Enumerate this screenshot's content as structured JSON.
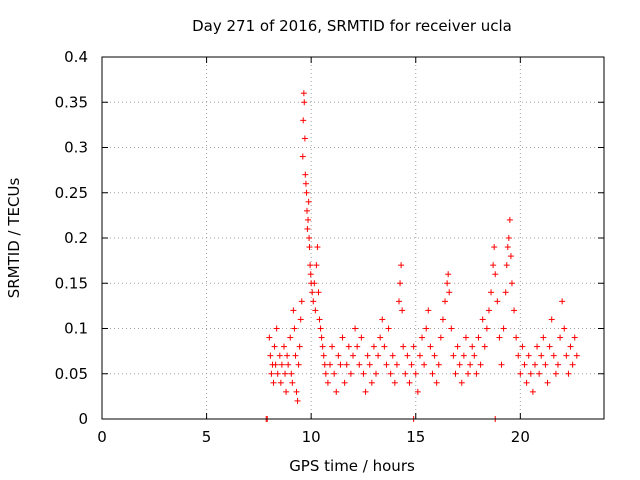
{
  "chart_data": {
    "type": "scatter",
    "title": "Day 271 of 2016, SRMTID for receiver ucla",
    "xlabel": "GPS time / hours",
    "ylabel": "SRMTID / TECUs",
    "xlim": [
      0,
      24
    ],
    "ylim": [
      0,
      0.4
    ],
    "x_ticks": [
      0,
      5,
      10,
      15,
      20
    ],
    "y_ticks": [
      0,
      0.05,
      0.1,
      0.15,
      0.2,
      0.25,
      0.3,
      0.35,
      0.4
    ],
    "x_tick_labels": [
      "0",
      "5",
      "10",
      "15",
      "20"
    ],
    "y_tick_labels": [
      "0",
      "0.05",
      "0.1",
      "0.15",
      "0.2",
      "0.25",
      "0.3",
      "0.35",
      "0.4"
    ],
    "grid": true,
    "marker": "plus",
    "color": "#ff0000",
    "series": [
      {
        "name": "SRMTID",
        "points": [
          [
            7.85,
            0.0
          ],
          [
            7.9,
            0.0
          ],
          [
            14.9,
            0.0
          ],
          [
            18.8,
            0.0
          ],
          [
            8.0,
            0.09
          ],
          [
            8.05,
            0.07
          ],
          [
            8.1,
            0.05
          ],
          [
            8.15,
            0.06
          ],
          [
            8.2,
            0.04
          ],
          [
            8.25,
            0.08
          ],
          [
            8.3,
            0.06
          ],
          [
            8.35,
            0.1
          ],
          [
            8.4,
            0.05
          ],
          [
            8.5,
            0.07
          ],
          [
            8.55,
            0.04
          ],
          [
            8.6,
            0.06
          ],
          [
            8.7,
            0.08
          ],
          [
            8.75,
            0.05
          ],
          [
            8.8,
            0.03
          ],
          [
            8.85,
            0.07
          ],
          [
            8.9,
            0.06
          ],
          [
            9.0,
            0.09
          ],
          [
            9.05,
            0.05
          ],
          [
            9.1,
            0.04
          ],
          [
            9.15,
            0.12
          ],
          [
            9.2,
            0.1
          ],
          [
            9.25,
            0.07
          ],
          [
            9.3,
            0.03
          ],
          [
            9.35,
            0.02
          ],
          [
            9.4,
            0.06
          ],
          [
            9.45,
            0.08
          ],
          [
            9.5,
            0.11
          ],
          [
            9.55,
            0.13
          ],
          [
            9.6,
            0.29
          ],
          [
            9.62,
            0.33
          ],
          [
            9.65,
            0.36
          ],
          [
            9.67,
            0.35
          ],
          [
            9.7,
            0.31
          ],
          [
            9.72,
            0.27
          ],
          [
            9.75,
            0.26
          ],
          [
            9.78,
            0.25
          ],
          [
            9.8,
            0.23
          ],
          [
            9.82,
            0.21
          ],
          [
            9.85,
            0.22
          ],
          [
            9.88,
            0.24
          ],
          [
            9.9,
            0.2
          ],
          [
            9.92,
            0.19
          ],
          [
            9.95,
            0.17
          ],
          [
            9.98,
            0.16
          ],
          [
            10.0,
            0.15
          ],
          [
            10.05,
            0.14
          ],
          [
            10.1,
            0.13
          ],
          [
            10.15,
            0.15
          ],
          [
            10.2,
            0.12
          ],
          [
            10.25,
            0.17
          ],
          [
            10.3,
            0.19
          ],
          [
            10.35,
            0.14
          ],
          [
            10.4,
            0.11
          ],
          [
            10.45,
            0.1
          ],
          [
            10.5,
            0.09
          ],
          [
            10.55,
            0.08
          ],
          [
            10.6,
            0.07
          ],
          [
            10.65,
            0.06
          ],
          [
            10.7,
            0.05
          ],
          [
            10.8,
            0.04
          ],
          [
            10.9,
            0.06
          ],
          [
            11.0,
            0.08
          ],
          [
            11.1,
            0.05
          ],
          [
            11.2,
            0.03
          ],
          [
            11.3,
            0.07
          ],
          [
            11.4,
            0.06
          ],
          [
            11.5,
            0.09
          ],
          [
            11.6,
            0.04
          ],
          [
            11.7,
            0.06
          ],
          [
            11.8,
            0.08
          ],
          [
            11.9,
            0.05
          ],
          [
            12.0,
            0.07
          ],
          [
            12.1,
            0.1
          ],
          [
            12.2,
            0.08
          ],
          [
            12.3,
            0.06
          ],
          [
            12.4,
            0.09
          ],
          [
            12.5,
            0.05
          ],
          [
            12.6,
            0.03
          ],
          [
            12.7,
            0.07
          ],
          [
            12.8,
            0.06
          ],
          [
            12.9,
            0.04
          ],
          [
            13.0,
            0.08
          ],
          [
            13.1,
            0.05
          ],
          [
            13.2,
            0.07
          ],
          [
            13.3,
            0.09
          ],
          [
            13.4,
            0.11
          ],
          [
            13.5,
            0.08
          ],
          [
            13.6,
            0.06
          ],
          [
            13.7,
            0.1
          ],
          [
            13.8,
            0.05
          ],
          [
            13.9,
            0.07
          ],
          [
            14.0,
            0.04
          ],
          [
            14.1,
            0.06
          ],
          [
            14.2,
            0.13
          ],
          [
            14.25,
            0.15
          ],
          [
            14.3,
            0.17
          ],
          [
            14.35,
            0.12
          ],
          [
            14.4,
            0.08
          ],
          [
            14.5,
            0.05
          ],
          [
            14.6,
            0.07
          ],
          [
            14.7,
            0.04
          ],
          [
            14.8,
            0.06
          ],
          [
            14.9,
            0.08
          ],
          [
            15.0,
            0.05
          ],
          [
            15.1,
            0.03
          ],
          [
            15.2,
            0.07
          ],
          [
            15.3,
            0.09
          ],
          [
            15.4,
            0.06
          ],
          [
            15.5,
            0.1
          ],
          [
            15.6,
            0.12
          ],
          [
            15.7,
            0.08
          ],
          [
            15.8,
            0.05
          ],
          [
            15.9,
            0.07
          ],
          [
            16.0,
            0.04
          ],
          [
            16.1,
            0.06
          ],
          [
            16.2,
            0.09
          ],
          [
            16.3,
            0.11
          ],
          [
            16.4,
            0.13
          ],
          [
            16.5,
            0.15
          ],
          [
            16.55,
            0.16
          ],
          [
            16.6,
            0.14
          ],
          [
            16.7,
            0.1
          ],
          [
            16.8,
            0.07
          ],
          [
            16.9,
            0.05
          ],
          [
            17.0,
            0.08
          ],
          [
            17.1,
            0.06
          ],
          [
            17.2,
            0.04
          ],
          [
            17.3,
            0.07
          ],
          [
            17.4,
            0.09
          ],
          [
            17.5,
            0.05
          ],
          [
            17.6,
            0.06
          ],
          [
            17.7,
            0.08
          ],
          [
            17.8,
            0.07
          ],
          [
            17.9,
            0.05
          ],
          [
            18.0,
            0.09
          ],
          [
            18.1,
            0.06
          ],
          [
            18.2,
            0.11
          ],
          [
            18.3,
            0.08
          ],
          [
            18.4,
            0.1
          ],
          [
            18.5,
            0.12
          ],
          [
            18.6,
            0.14
          ],
          [
            18.7,
            0.17
          ],
          [
            18.75,
            0.19
          ],
          [
            18.8,
            0.16
          ],
          [
            18.9,
            0.13
          ],
          [
            19.0,
            0.09
          ],
          [
            19.1,
            0.06
          ],
          [
            19.2,
            0.1
          ],
          [
            19.3,
            0.14
          ],
          [
            19.35,
            0.17
          ],
          [
            19.4,
            0.19
          ],
          [
            19.45,
            0.2
          ],
          [
            19.5,
            0.22
          ],
          [
            19.55,
            0.18
          ],
          [
            19.6,
            0.15
          ],
          [
            19.7,
            0.12
          ],
          [
            19.8,
            0.09
          ],
          [
            19.9,
            0.07
          ],
          [
            20.0,
            0.05
          ],
          [
            20.1,
            0.08
          ],
          [
            20.2,
            0.06
          ],
          [
            20.3,
            0.04
          ],
          [
            20.4,
            0.07
          ],
          [
            20.5,
            0.05
          ],
          [
            20.6,
            0.03
          ],
          [
            20.7,
            0.06
          ],
          [
            20.8,
            0.08
          ],
          [
            20.9,
            0.05
          ],
          [
            21.0,
            0.07
          ],
          [
            21.1,
            0.09
          ],
          [
            21.2,
            0.06
          ],
          [
            21.3,
            0.04
          ],
          [
            21.4,
            0.08
          ],
          [
            21.5,
            0.11
          ],
          [
            21.6,
            0.07
          ],
          [
            21.7,
            0.05
          ],
          [
            21.8,
            0.06
          ],
          [
            21.9,
            0.09
          ],
          [
            22.0,
            0.13
          ],
          [
            22.1,
            0.1
          ],
          [
            22.2,
            0.07
          ],
          [
            22.3,
            0.05
          ],
          [
            22.4,
            0.08
          ],
          [
            22.5,
            0.06
          ],
          [
            22.6,
            0.09
          ],
          [
            22.7,
            0.07
          ]
        ]
      }
    ]
  }
}
